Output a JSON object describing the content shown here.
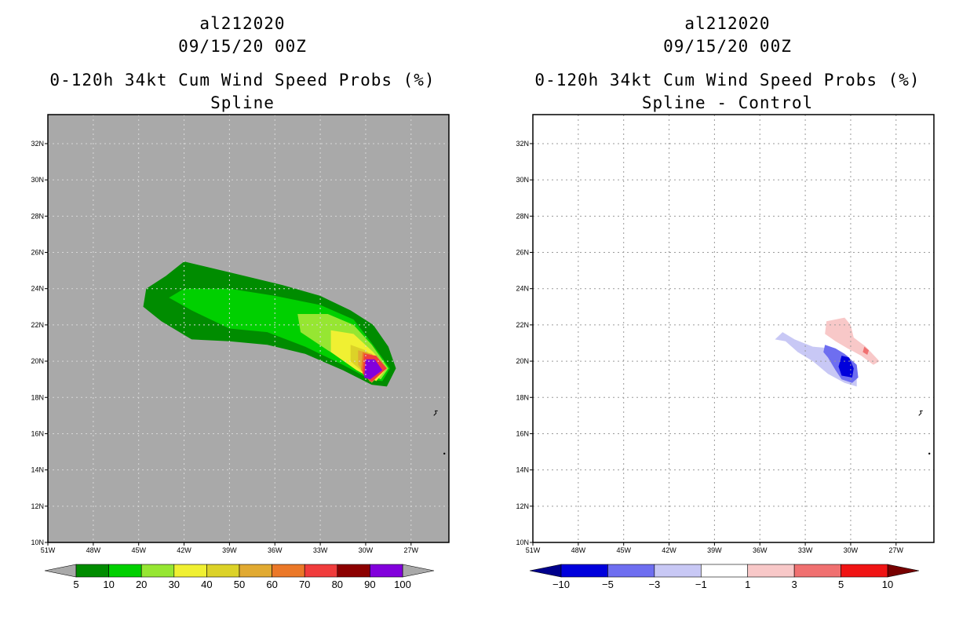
{
  "chart_data": [
    {
      "type": "heatmap",
      "id": "al212020",
      "date": "09/15/20 00Z",
      "title": "0-120h 34kt Cum Wind Speed Probs (%)",
      "subtitle": "Spline",
      "x_ticks": [
        "51W",
        "48W",
        "45W",
        "42W",
        "39W",
        "36W",
        "33W",
        "30W",
        "27W"
      ],
      "y_ticks": [
        "10N",
        "12N",
        "14N",
        "16N",
        "18N",
        "20N",
        "22N",
        "24N",
        "26N",
        "28N",
        "30N",
        "32N"
      ],
      "xlim": [
        -51,
        -24.5
      ],
      "ylim": [
        10,
        33.6
      ],
      "background": "#a9a9a9",
      "grid": "dashed",
      "colorbar": {
        "labels": [
          "5",
          "10",
          "20",
          "30",
          "40",
          "50",
          "60",
          "70",
          "80",
          "90",
          "100"
        ],
        "colors": [
          "#008c00",
          "#00d000",
          "#96e632",
          "#f0f032",
          "#dcd228",
          "#e1aa32",
          "#eb7828",
          "#f03c3c",
          "#8c0000",
          "#8200dc"
        ],
        "end_colors": [
          "#a9a9a9",
          "#a9a9a9"
        ]
      },
      "contours": [
        {
          "level": 5,
          "color": "#008c00",
          "polygon": [
            [
              -43.2,
              24.7
            ],
            [
              -42,
              25.5
            ],
            [
              -40.5,
              25.2
            ],
            [
              -38,
              24.7
            ],
            [
              -35.5,
              24.2
            ],
            [
              -33,
              23.6
            ],
            [
              -31,
              22.8
            ],
            [
              -29.5,
              22
            ],
            [
              -28.5,
              20.8
            ],
            [
              -28,
              19.6
            ],
            [
              -28.6,
              18.6
            ],
            [
              -29.6,
              18.7
            ],
            [
              -31.5,
              19.5
            ],
            [
              -34,
              20.4
            ],
            [
              -36.5,
              20.9
            ],
            [
              -39,
              21.1
            ],
            [
              -41.5,
              21.2
            ],
            [
              -43.5,
              22.2
            ],
            [
              -44.7,
              23
            ],
            [
              -44.5,
              24
            ]
          ]
        },
        {
          "level": 10,
          "color": "#00d000",
          "polygon": [
            [
              -43,
              23.5
            ],
            [
              -42,
              24
            ],
            [
              -39,
              24
            ],
            [
              -36,
              23.6
            ],
            [
              -33,
              23.1
            ],
            [
              -30.8,
              22.3
            ],
            [
              -29.6,
              21
            ],
            [
              -28.4,
              19.6
            ],
            [
              -28.9,
              18.9
            ],
            [
              -29.7,
              19
            ],
            [
              -31.5,
              19.8
            ],
            [
              -34,
              20.8
            ],
            [
              -36.5,
              21.6
            ],
            [
              -39,
              21.8
            ],
            [
              -41.5,
              22.8
            ]
          ]
        },
        {
          "level": 20,
          "color": "#96e632",
          "polygon": [
            [
              -34.5,
              22.6
            ],
            [
              -32.5,
              22.6
            ],
            [
              -30.8,
              22
            ],
            [
              -29.6,
              20.9
            ],
            [
              -28.5,
              19.6
            ],
            [
              -29,
              19
            ],
            [
              -30.5,
              19.6
            ],
            [
              -32.5,
              20.6
            ],
            [
              -34.3,
              21.6
            ]
          ]
        },
        {
          "level": 30,
          "color": "#f0f032",
          "polygon": [
            [
              -32.3,
              21.7
            ],
            [
              -30.8,
              21.5
            ],
            [
              -29.5,
              20.5
            ],
            [
              -28.6,
              19.6
            ],
            [
              -29.3,
              18.9
            ],
            [
              -30.6,
              19.5
            ],
            [
              -32.3,
              20.5
            ]
          ]
        },
        {
          "level": 40,
          "color": "#dcd228",
          "polygon": [
            [
              -31,
              20.9
            ],
            [
              -30,
              20.6
            ],
            [
              -28.8,
              19.6
            ],
            [
              -29.5,
              18.9
            ],
            [
              -31,
              20
            ]
          ]
        },
        {
          "level": 50,
          "color": "#e1aa32",
          "polygon": [
            [
              -30.5,
              20.6
            ],
            [
              -29.6,
              20.4
            ],
            [
              -28.7,
              19.6
            ],
            [
              -29.6,
              18.8
            ],
            [
              -30.5,
              19.8
            ]
          ]
        },
        {
          "level": 60,
          "color": "#eb7828",
          "polygon": [
            [
              -30.2,
              20.5
            ],
            [
              -29.5,
              20.3
            ],
            [
              -28.7,
              19.6
            ],
            [
              -29.7,
              18.85
            ],
            [
              -30.3,
              19.5
            ]
          ]
        },
        {
          "level": 70,
          "color": "#f03c3c",
          "polygon": [
            [
              -30.1,
              20.4
            ],
            [
              -29.3,
              20.3
            ],
            [
              -28.6,
              19.6
            ],
            [
              -29.6,
              18.85
            ],
            [
              -30.2,
              19.3
            ]
          ]
        },
        {
          "level": 90,
          "color": "#8200dc",
          "polygon": [
            [
              -30,
              20.1
            ],
            [
              -29.4,
              20.1
            ],
            [
              -28.9,
              19.5
            ],
            [
              -29.7,
              19
            ],
            [
              -30.1,
              19.1
            ]
          ]
        }
      ]
    },
    {
      "type": "heatmap",
      "id": "al212020",
      "date": "09/15/20 00Z",
      "title": "0-120h 34kt Cum Wind Speed Probs (%)",
      "subtitle": "Spline - Control",
      "x_ticks": [
        "51W",
        "48W",
        "45W",
        "42W",
        "39W",
        "36W",
        "33W",
        "30W",
        "27W"
      ],
      "y_ticks": [
        "10N",
        "12N",
        "14N",
        "16N",
        "18N",
        "20N",
        "22N",
        "24N",
        "26N",
        "28N",
        "30N",
        "32N"
      ],
      "xlim": [
        -51,
        -24.5
      ],
      "ylim": [
        10,
        33.6
      ],
      "background": "#ffffff",
      "grid": "dashed",
      "colorbar": {
        "labels": [
          "-10",
          "-5",
          "-3",
          "-1",
          "1",
          "3",
          "5",
          "10"
        ],
        "colors": [
          "#0000dc",
          "#6e6ef0",
          "#c8c8f5",
          "#ffffff",
          "#f8c8c8",
          "#f07070",
          "#f01414"
        ],
        "end_colors": [
          "#00008c",
          "#780000"
        ]
      },
      "contours": [
        {
          "level": -1,
          "color": "#c8c8f5",
          "polygon": [
            [
              -35,
              21.2
            ],
            [
              -34.3,
              21.1
            ],
            [
              -33.5,
              20.5
            ],
            [
              -32.5,
              20
            ],
            [
              -31.5,
              19.3
            ],
            [
              -30.4,
              18.8
            ],
            [
              -29.6,
              18.6
            ],
            [
              -29.6,
              19.4
            ],
            [
              -30.2,
              20.3
            ],
            [
              -31.2,
              20.7
            ],
            [
              -32.5,
              20.8
            ],
            [
              -33.7,
              21.2
            ],
            [
              -34.5,
              21.6
            ]
          ]
        },
        {
          "level": -3,
          "color": "#6e6ef0",
          "polygon": [
            [
              -31.7,
              20.9
            ],
            [
              -31,
              20.7
            ],
            [
              -30.4,
              20.4
            ],
            [
              -29.6,
              19.8
            ],
            [
              -29.5,
              19.1
            ],
            [
              -29.9,
              18.8
            ],
            [
              -30.6,
              19
            ],
            [
              -31,
              19.5
            ],
            [
              -31.5,
              20.2
            ],
            [
              -31.8,
              20.5
            ]
          ]
        },
        {
          "level": -5,
          "color": "#0000dc",
          "polygon": [
            [
              -30.6,
              20.3
            ],
            [
              -30.1,
              20.2
            ],
            [
              -29.8,
              19.6
            ],
            [
              -29.9,
              19.1
            ],
            [
              -30.6,
              19.2
            ],
            [
              -30.8,
              19.7
            ]
          ]
        },
        {
          "level": 1,
          "color": "#f8c8c8",
          "polygon": [
            [
              -31.6,
              22.2
            ],
            [
              -30.4,
              22.4
            ],
            [
              -30,
              22
            ],
            [
              -29.8,
              21.3
            ],
            [
              -29,
              20.8
            ],
            [
              -28.1,
              20
            ],
            [
              -28.5,
              19.8
            ],
            [
              -29.3,
              20.3
            ],
            [
              -30.2,
              20.7
            ],
            [
              -31,
              21.1
            ],
            [
              -31.7,
              21.5
            ]
          ]
        },
        {
          "level": 3,
          "color": "#f07070",
          "polygon": [
            [
              -29.1,
              20.8
            ],
            [
              -28.8,
              20.6
            ],
            [
              -28.9,
              20.35
            ],
            [
              -29.2,
              20.5
            ]
          ]
        }
      ]
    }
  ]
}
